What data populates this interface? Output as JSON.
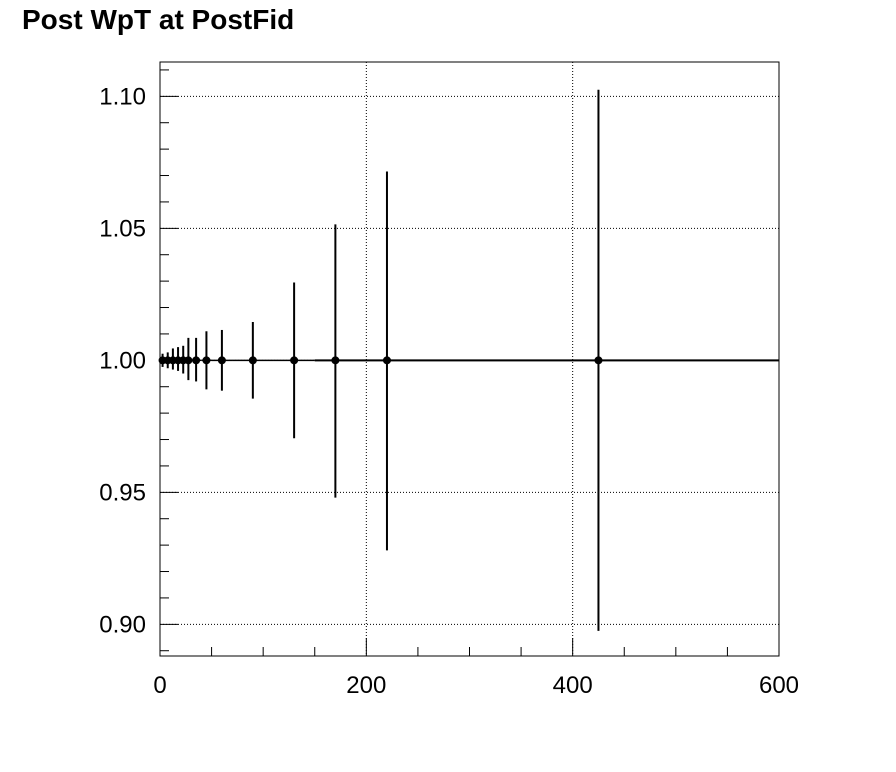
{
  "chart_data": {
    "type": "scatter",
    "title": "Post WpT at PostFid",
    "xlabel": "",
    "ylabel": "",
    "xlim": [
      0,
      600
    ],
    "ylim": [
      0.888,
      1.113
    ],
    "grid": true,
    "x_ticks": [
      0,
      200,
      400,
      600
    ],
    "x_tick_labels": [
      "0",
      "200",
      "400",
      "600"
    ],
    "y_ticks": [
      0.9,
      0.95,
      1.0,
      1.05,
      1.1
    ],
    "y_tick_labels": [
      "0.90",
      "0.95",
      "1.00",
      "1.05",
      "1.10"
    ],
    "reference_line": {
      "y": 1.0,
      "from_x": 150,
      "to_x": 600
    },
    "series": [
      {
        "points": [
          {
            "x": 2.5,
            "xlo": 0,
            "xhi": 5,
            "y": 1.0,
            "ylo": 0.9975,
            "yhi": 1.0025
          },
          {
            "x": 7.5,
            "xlo": 5,
            "xhi": 10,
            "y": 1.0,
            "ylo": 0.997,
            "yhi": 1.003
          },
          {
            "x": 12.5,
            "xlo": 10,
            "xhi": 15,
            "y": 1.0,
            "ylo": 0.9965,
            "yhi": 1.0045
          },
          {
            "x": 17.5,
            "xlo": 15,
            "xhi": 20,
            "y": 1.0,
            "ylo": 0.996,
            "yhi": 1.005
          },
          {
            "x": 22.5,
            "xlo": 20,
            "xhi": 25,
            "y": 1.0,
            "ylo": 0.995,
            "yhi": 1.0055
          },
          {
            "x": 27.5,
            "xlo": 25,
            "xhi": 30,
            "y": 1.0,
            "ylo": 0.9925,
            "yhi": 1.0085
          },
          {
            "x": 35,
            "xlo": 30,
            "xhi": 40,
            "y": 1.0,
            "ylo": 0.992,
            "yhi": 1.0085
          },
          {
            "x": 45,
            "xlo": 40,
            "xhi": 50,
            "y": 1.0,
            "ylo": 0.989,
            "yhi": 1.011
          },
          {
            "x": 60,
            "xlo": 50,
            "xhi": 70,
            "y": 1.0,
            "ylo": 0.9885,
            "yhi": 1.0115
          },
          {
            "x": 90,
            "xlo": 70,
            "xhi": 110,
            "y": 1.0,
            "ylo": 0.9855,
            "yhi": 1.0145
          },
          {
            "x": 130,
            "xlo": 110,
            "xhi": 150,
            "y": 1.0,
            "ylo": 0.9705,
            "yhi": 1.0295
          },
          {
            "x": 170,
            "xlo": 150,
            "xhi": 190,
            "y": 1.0,
            "ylo": 0.948,
            "yhi": 1.0515
          },
          {
            "x": 220,
            "xlo": 190,
            "xhi": 250,
            "y": 1.0,
            "ylo": 0.928,
            "yhi": 1.0715
          },
          {
            "x": 425,
            "xlo": 250,
            "xhi": 600,
            "y": 1.0,
            "ylo": 0.8975,
            "yhi": 1.1025
          }
        ]
      }
    ]
  }
}
